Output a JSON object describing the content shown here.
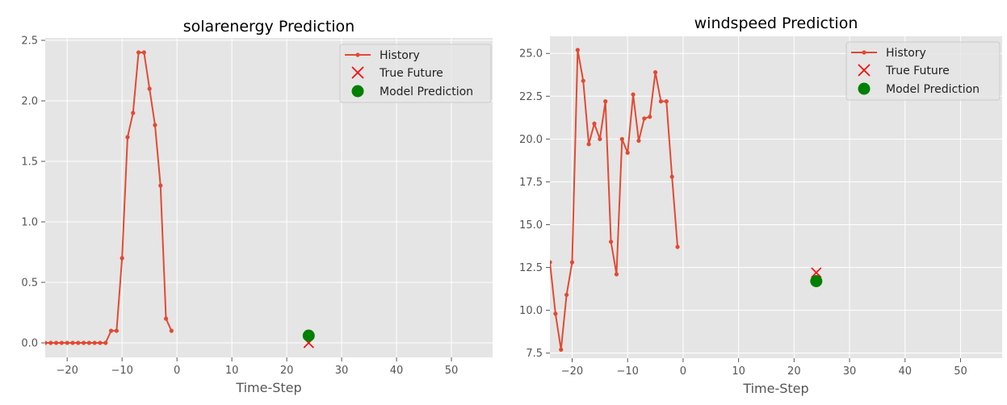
{
  "colors": {
    "background": "#e5e5e5",
    "grid": "#ffffff",
    "history": "#e24a33",
    "true_future": "#ff0000",
    "prediction": "#008000"
  },
  "chart_data": [
    {
      "type": "line",
      "title": "solarenergy Prediction",
      "xlabel": "Time-Step",
      "ylabel": "",
      "xlim": [
        -24,
        57.5
      ],
      "ylim": [
        -0.12,
        2.52
      ],
      "xticks": [
        -20,
        -10,
        0,
        10,
        20,
        30,
        40,
        50
      ],
      "xtick_labels": [
        "−20",
        "−10",
        "0",
        "10",
        "20",
        "30",
        "40",
        "50"
      ],
      "yticks": [
        0.0,
        0.5,
        1.0,
        1.5,
        2.0,
        2.5
      ],
      "ytick_labels": [
        "0.0",
        "0.5",
        "1.0",
        "1.5",
        "2.0",
        "2.5"
      ],
      "grid": true,
      "legend_position": "top-right",
      "legend": [
        "History",
        "True Future",
        "Model Prediction"
      ],
      "history": {
        "x": [
          -24,
          -23,
          -22,
          -21,
          -20,
          -19,
          -18,
          -17,
          -16,
          -15,
          -14,
          -13,
          -12,
          -11,
          -10,
          -9,
          -8,
          -7,
          -6,
          -5,
          -4,
          -3,
          -2,
          -1
        ],
        "y": [
          0.0,
          0.0,
          0.0,
          0.0,
          0.0,
          0.0,
          0.0,
          0.0,
          0.0,
          0.0,
          0.0,
          0.0,
          0.1,
          0.1,
          0.7,
          1.7,
          1.9,
          2.4,
          2.4,
          2.1,
          1.8,
          1.3,
          0.2,
          0.1
        ]
      },
      "true_future": {
        "x": 24,
        "y": 0.0
      },
      "model_prediction": {
        "x": 24,
        "y": 0.06
      }
    },
    {
      "type": "line",
      "title": "windspeed Prediction",
      "xlabel": "Time-Step",
      "ylabel": "",
      "xlim": [
        -24,
        57.5
      ],
      "ylim": [
        7.2,
        26.0
      ],
      "xticks": [
        -20,
        -10,
        0,
        10,
        20,
        30,
        40,
        50
      ],
      "xtick_labels": [
        "−20",
        "−10",
        "0",
        "10",
        "20",
        "30",
        "40",
        "50"
      ],
      "yticks": [
        7.5,
        10.0,
        12.5,
        15.0,
        17.5,
        20.0,
        22.5,
        25.0
      ],
      "ytick_labels": [
        "7.5",
        "10.0",
        "12.5",
        "15.0",
        "17.5",
        "20.0",
        "22.5",
        "25.0"
      ],
      "grid": true,
      "legend_position": "top-right",
      "legend": [
        "History",
        "True Future",
        "Model Prediction"
      ],
      "history": {
        "x": [
          -24,
          -23,
          -22,
          -21,
          -20,
          -19,
          -18,
          -17,
          -16,
          -15,
          -14,
          -13,
          -12,
          -11,
          -10,
          -9,
          -8,
          -7,
          -6,
          -5,
          -4,
          -3,
          -2,
          -1
        ],
        "y": [
          12.8,
          9.8,
          7.7,
          10.9,
          12.8,
          25.2,
          23.4,
          19.7,
          20.9,
          20.0,
          22.2,
          14.0,
          12.1,
          20.0,
          19.2,
          22.6,
          19.9,
          21.2,
          21.3,
          23.9,
          22.2,
          22.2,
          17.8,
          13.7
        ]
      },
      "true_future": {
        "x": 24,
        "y": 12.2
      },
      "model_prediction": {
        "x": 24,
        "y": 11.7
      }
    }
  ]
}
